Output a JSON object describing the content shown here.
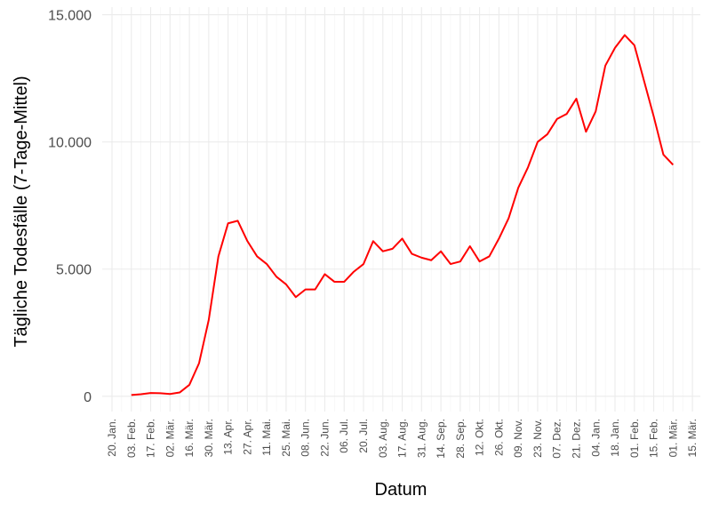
{
  "chart_data": {
    "type": "line",
    "x_label": "Datum",
    "y_label": "Tägliche Todesfälle (7-Tage-Mittel)",
    "categories": [
      "20. Jan.",
      null,
      "03. Feb.",
      null,
      "17. Feb.",
      null,
      "02. Mär.",
      null,
      "16. Mär.",
      null,
      "30. Mär.",
      null,
      "13. Apr.",
      null,
      "27. Apr.",
      null,
      "11. Mai.",
      null,
      "25. Mai.",
      null,
      "08. Jun.",
      null,
      "22. Jun.",
      null,
      "06. Jul.",
      null,
      "20. Jul.",
      null,
      "03. Aug.",
      null,
      "17. Aug.",
      null,
      "31. Aug.",
      null,
      "14. Sep.",
      null,
      "28. Sep.",
      null,
      "12. Okt.",
      null,
      "26. Okt.",
      null,
      "09. Nov.",
      null,
      "23. Nov.",
      null,
      "07. Dez.",
      null,
      "21. Dez.",
      null,
      "04. Jan.",
      null,
      "18. Jan.",
      null,
      "01. Feb.",
      null,
      "15. Feb.",
      null,
      "01. Mär.",
      null,
      "15. Mär."
    ],
    "series": [
      {
        "color": "#ff0000",
        "values": [
          null,
          null,
          50,
          80,
          130,
          120,
          90,
          150,
          450,
          1300,
          3000,
          5500,
          6800,
          6900,
          6100,
          5500,
          5200,
          4700,
          4400,
          3900,
          4200,
          4200,
          4800,
          4500,
          4500,
          4900,
          5200,
          6100,
          5700,
          5800,
          6200,
          5600,
          5450,
          5350,
          5700,
          5200,
          5300,
          5900,
          5300,
          5500,
          6200,
          7000,
          8200,
          9000,
          10000,
          10300,
          10900,
          11100,
          11700,
          10400,
          11200,
          13000,
          13700,
          14200,
          13800,
          12400,
          11000,
          9500,
          9100,
          null,
          null
        ]
      }
    ],
    "ylim": [
      -600,
      15300
    ],
    "yticks": [
      0,
      {
        "value": 5000,
        "label": "5.000"
      },
      {
        "value": 10000,
        "label": "10.000"
      },
      {
        "value": 15000,
        "label": "15.000"
      }
    ],
    "grid": true
  }
}
